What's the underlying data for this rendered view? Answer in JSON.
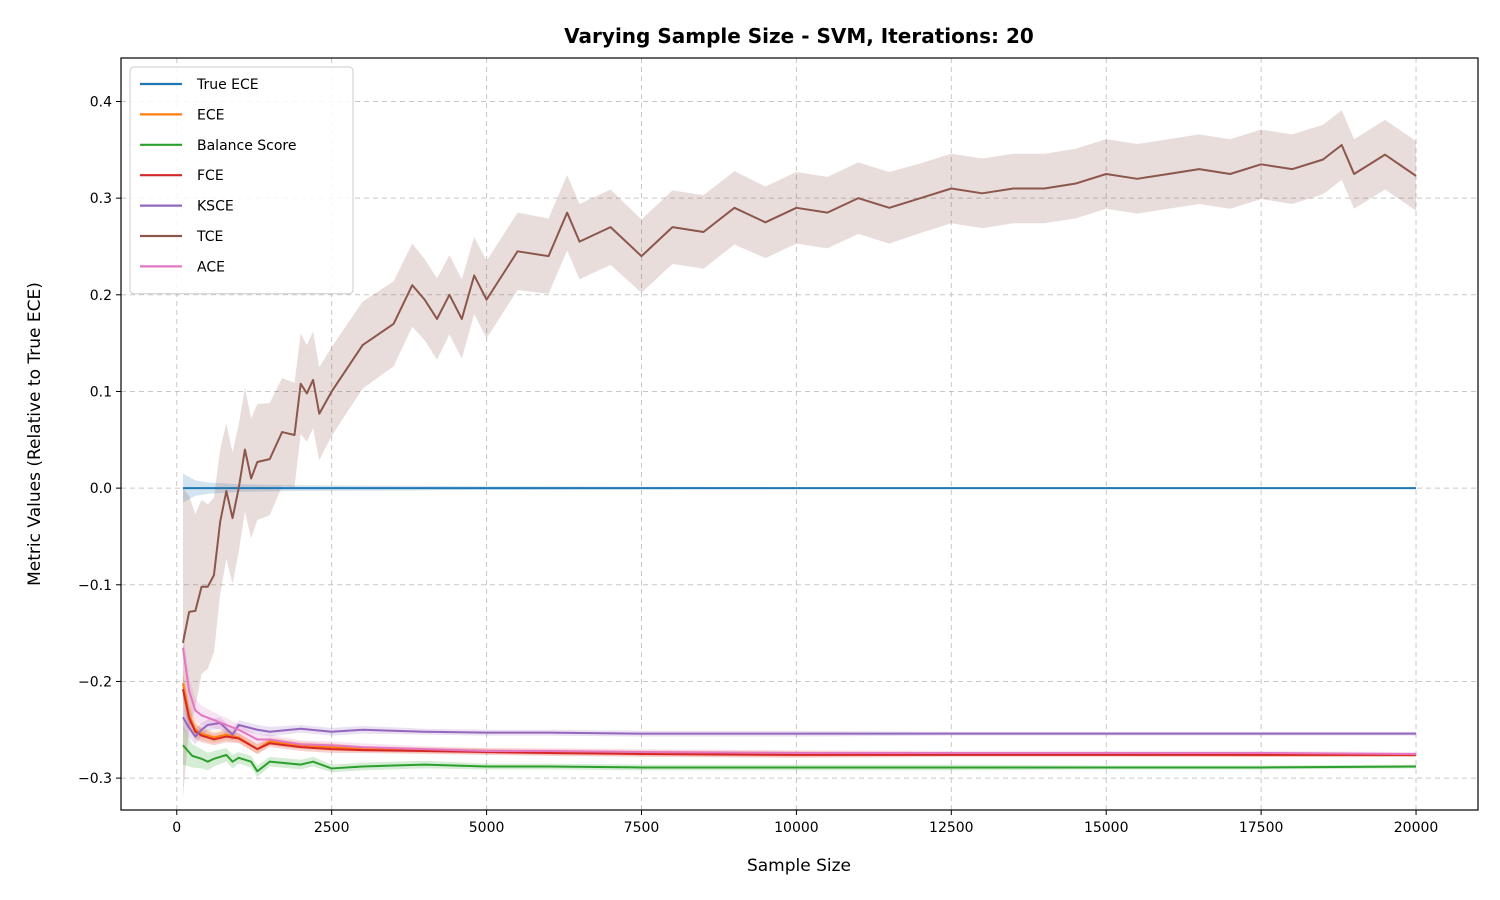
{
  "chart_data": {
    "type": "line",
    "title": "Varying Sample Size - SVM, Iterations: 20",
    "xlabel": "Sample Size",
    "ylabel": "Metric Values (Relative to True ECE)",
    "xlim": [
      -900,
      21000
    ],
    "ylim": [
      -0.333,
      0.445
    ],
    "xticks": [
      0,
      2500,
      5000,
      7500,
      10000,
      12500,
      15000,
      17500,
      20000
    ],
    "yticks": [
      -0.3,
      -0.2,
      -0.1,
      0.0,
      0.1,
      0.2,
      0.3,
      0.4
    ],
    "grid": true,
    "legend_position": "top-left",
    "series": [
      {
        "name": "True ECE",
        "color": "#1f77b4",
        "x": [
          100,
          300,
          500,
          1000,
          2000,
          5000,
          10000,
          15000,
          20000
        ],
        "values": [
          0.0,
          0.0,
          0.0,
          0.0,
          0.0,
          0.0,
          0.0,
          0.0,
          0.0
        ],
        "band": [
          0.015,
          0.008,
          0.006,
          0.004,
          0.003,
          0.002,
          0.001,
          0.001,
          0.001
        ]
      },
      {
        "name": "ECE",
        "color": "#ff7f0e",
        "x": [
          100,
          200,
          300,
          400,
          600,
          800,
          1000,
          1300,
          1500,
          2000,
          2500,
          3000,
          4000,
          5000,
          6000,
          7500,
          10000,
          12500,
          15000,
          17500,
          20000
        ],
        "values": [
          -0.202,
          -0.235,
          -0.25,
          -0.254,
          -0.258,
          -0.255,
          -0.258,
          -0.27,
          -0.262,
          -0.266,
          -0.268,
          -0.27,
          -0.271,
          -0.272,
          -0.273,
          -0.274,
          -0.275,
          -0.275,
          -0.275,
          -0.276,
          -0.276
        ],
        "band": [
          0.015,
          0.012,
          0.008,
          0.007,
          0.006,
          0.006,
          0.005,
          0.005,
          0.004,
          0.004,
          0.004,
          0.003,
          0.003,
          0.003,
          0.003,
          0.003,
          0.003,
          0.002,
          0.002,
          0.002,
          0.002
        ]
      },
      {
        "name": "Balance Score",
        "color": "#2ca02c",
        "x": [
          100,
          250,
          400,
          500,
          600,
          800,
          900,
          1000,
          1200,
          1300,
          1500,
          2000,
          2200,
          2500,
          3000,
          4000,
          5000,
          6000,
          7500,
          10000,
          12500,
          15000,
          17500,
          20000
        ],
        "values": [
          -0.266,
          -0.277,
          -0.28,
          -0.283,
          -0.28,
          -0.276,
          -0.283,
          -0.279,
          -0.283,
          -0.293,
          -0.283,
          -0.286,
          -0.283,
          -0.29,
          -0.288,
          -0.286,
          -0.288,
          -0.288,
          -0.289,
          -0.289,
          -0.289,
          -0.289,
          -0.289,
          -0.288
        ],
        "band": [
          0.02,
          0.012,
          0.01,
          0.009,
          0.008,
          0.007,
          0.007,
          0.006,
          0.006,
          0.006,
          0.005,
          0.005,
          0.005,
          0.004,
          0.004,
          0.004,
          0.003,
          0.003,
          0.003,
          0.003,
          0.003,
          0.002,
          0.002,
          0.002
        ]
      },
      {
        "name": "FCE",
        "color": "#d62728",
        "x": [
          100,
          200,
          300,
          400,
          600,
          800,
          1000,
          1300,
          1500,
          2000,
          2500,
          3000,
          4000,
          5000,
          6000,
          7500,
          10000,
          12500,
          15000,
          17500,
          20000
        ],
        "values": [
          -0.208,
          -0.238,
          -0.252,
          -0.256,
          -0.26,
          -0.257,
          -0.259,
          -0.27,
          -0.264,
          -0.268,
          -0.27,
          -0.271,
          -0.272,
          -0.273,
          -0.274,
          -0.275,
          -0.276,
          -0.276,
          -0.276,
          -0.276,
          -0.276
        ],
        "band": [
          0.015,
          0.012,
          0.008,
          0.007,
          0.006,
          0.006,
          0.005,
          0.005,
          0.004,
          0.004,
          0.004,
          0.003,
          0.003,
          0.003,
          0.003,
          0.003,
          0.003,
          0.002,
          0.002,
          0.002,
          0.002
        ]
      },
      {
        "name": "KSCE",
        "color": "#9467bd",
        "x": [
          100,
          200,
          300,
          400,
          500,
          700,
          900,
          1000,
          1300,
          1500,
          2000,
          2500,
          3000,
          4000,
          5000,
          6000,
          7500,
          10000,
          12500,
          15000,
          17500,
          20000
        ],
        "values": [
          -0.237,
          -0.248,
          -0.257,
          -0.25,
          -0.245,
          -0.243,
          -0.255,
          -0.245,
          -0.25,
          -0.252,
          -0.249,
          -0.252,
          -0.25,
          -0.252,
          -0.253,
          -0.253,
          -0.254,
          -0.254,
          -0.254,
          -0.254,
          -0.254,
          -0.254
        ],
        "band": [
          0.012,
          0.01,
          0.008,
          0.007,
          0.006,
          0.006,
          0.006,
          0.005,
          0.005,
          0.005,
          0.004,
          0.004,
          0.004,
          0.003,
          0.003,
          0.003,
          0.003,
          0.003,
          0.002,
          0.002,
          0.002,
          0.002
        ]
      },
      {
        "name": "TCE",
        "color": "#8c564b",
        "x": [
          100,
          200,
          300,
          400,
          500,
          600,
          700,
          800,
          900,
          1000,
          1100,
          1200,
          1300,
          1500,
          1700,
          1900,
          2000,
          2100,
          2200,
          2300,
          2500,
          3000,
          3500,
          3800,
          4000,
          4200,
          4400,
          4600,
          4800,
          5000,
          5500,
          6000,
          6300,
          6500,
          7000,
          7500,
          8000,
          8500,
          9000,
          9500,
          10000,
          10500,
          11000,
          11500,
          12000,
          12500,
          13000,
          13500,
          14000,
          14500,
          15000,
          15500,
          16000,
          16500,
          17000,
          17500,
          18000,
          18500,
          18800,
          19000,
          19500,
          20000
        ],
        "values": [
          -0.16,
          -0.128,
          -0.127,
          -0.102,
          -0.102,
          -0.09,
          -0.035,
          -0.003,
          -0.031,
          0.0,
          0.04,
          0.01,
          0.027,
          0.03,
          0.058,
          0.055,
          0.108,
          0.098,
          0.112,
          0.077,
          0.1,
          0.148,
          0.17,
          0.21,
          0.195,
          0.175,
          0.2,
          0.175,
          0.22,
          0.195,
          0.245,
          0.24,
          0.285,
          0.255,
          0.27,
          0.24,
          0.27,
          0.265,
          0.29,
          0.275,
          0.29,
          0.285,
          0.3,
          0.29,
          0.3,
          0.31,
          0.305,
          0.31,
          0.31,
          0.315,
          0.325,
          0.32,
          0.325,
          0.33,
          0.325,
          0.335,
          0.33,
          0.34,
          0.355,
          0.325,
          0.345,
          0.323
        ],
        "band": [
          0.16,
          0.12,
          0.1,
          0.09,
          0.085,
          0.08,
          0.075,
          0.07,
          0.068,
          0.066,
          0.064,
          0.062,
          0.06,
          0.058,
          0.056,
          0.054,
          0.052,
          0.05,
          0.05,
          0.048,
          0.046,
          0.045,
          0.044,
          0.043,
          0.042,
          0.042,
          0.041,
          0.041,
          0.04,
          0.04,
          0.04,
          0.039,
          0.039,
          0.039,
          0.039,
          0.038,
          0.038,
          0.038,
          0.038,
          0.037,
          0.037,
          0.037,
          0.037,
          0.037,
          0.036,
          0.036,
          0.036,
          0.036,
          0.036,
          0.036,
          0.036,
          0.036,
          0.036,
          0.036,
          0.036,
          0.036,
          0.036,
          0.036,
          0.036,
          0.036,
          0.036,
          0.036
        ]
      },
      {
        "name": "ACE",
        "color": "#e377c2",
        "x": [
          100,
          200,
          300,
          400,
          600,
          800,
          1000,
          1300,
          1500,
          2000,
          2500,
          3000,
          4000,
          5000,
          6000,
          7500,
          10000,
          12500,
          15000,
          17500,
          20000
        ],
        "values": [
          -0.165,
          -0.21,
          -0.23,
          -0.235,
          -0.24,
          -0.245,
          -0.25,
          -0.26,
          -0.26,
          -0.265,
          -0.266,
          -0.268,
          -0.27,
          -0.272,
          -0.272,
          -0.273,
          -0.274,
          -0.274,
          -0.274,
          -0.274,
          -0.275
        ],
        "band": [
          0.02,
          0.015,
          0.012,
          0.01,
          0.008,
          0.007,
          0.006,
          0.005,
          0.005,
          0.004,
          0.004,
          0.004,
          0.003,
          0.003,
          0.003,
          0.003,
          0.003,
          0.002,
          0.002,
          0.002,
          0.002
        ]
      }
    ]
  }
}
